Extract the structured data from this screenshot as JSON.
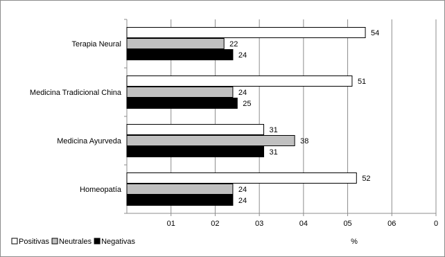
{
  "chart_data": {
    "type": "bar",
    "orientation": "horizontal",
    "categories": [
      "Terapia Neural",
      "Medicina Tradicional China",
      "Medicina Ayurveda",
      "Homeopatía"
    ],
    "series": [
      {
        "name": "Positivas",
        "values": [
          54,
          51,
          31,
          52
        ],
        "color": "#ffffff"
      },
      {
        "name": "Neutrales",
        "values": [
          22,
          24,
          38,
          24
        ],
        "color": "#c0c0c0"
      },
      {
        "name": "Negativas",
        "values": [
          24,
          25,
          31,
          24
        ],
        "color": "#000000"
      }
    ],
    "x_ticks": [
      "01",
      "02",
      "03",
      "04",
      "05",
      "06",
      "0"
    ],
    "xlabel": "%",
    "title": "",
    "ylabel": "",
    "grid": "vertical",
    "legend_position": "bottom-left",
    "data_labels": true
  }
}
